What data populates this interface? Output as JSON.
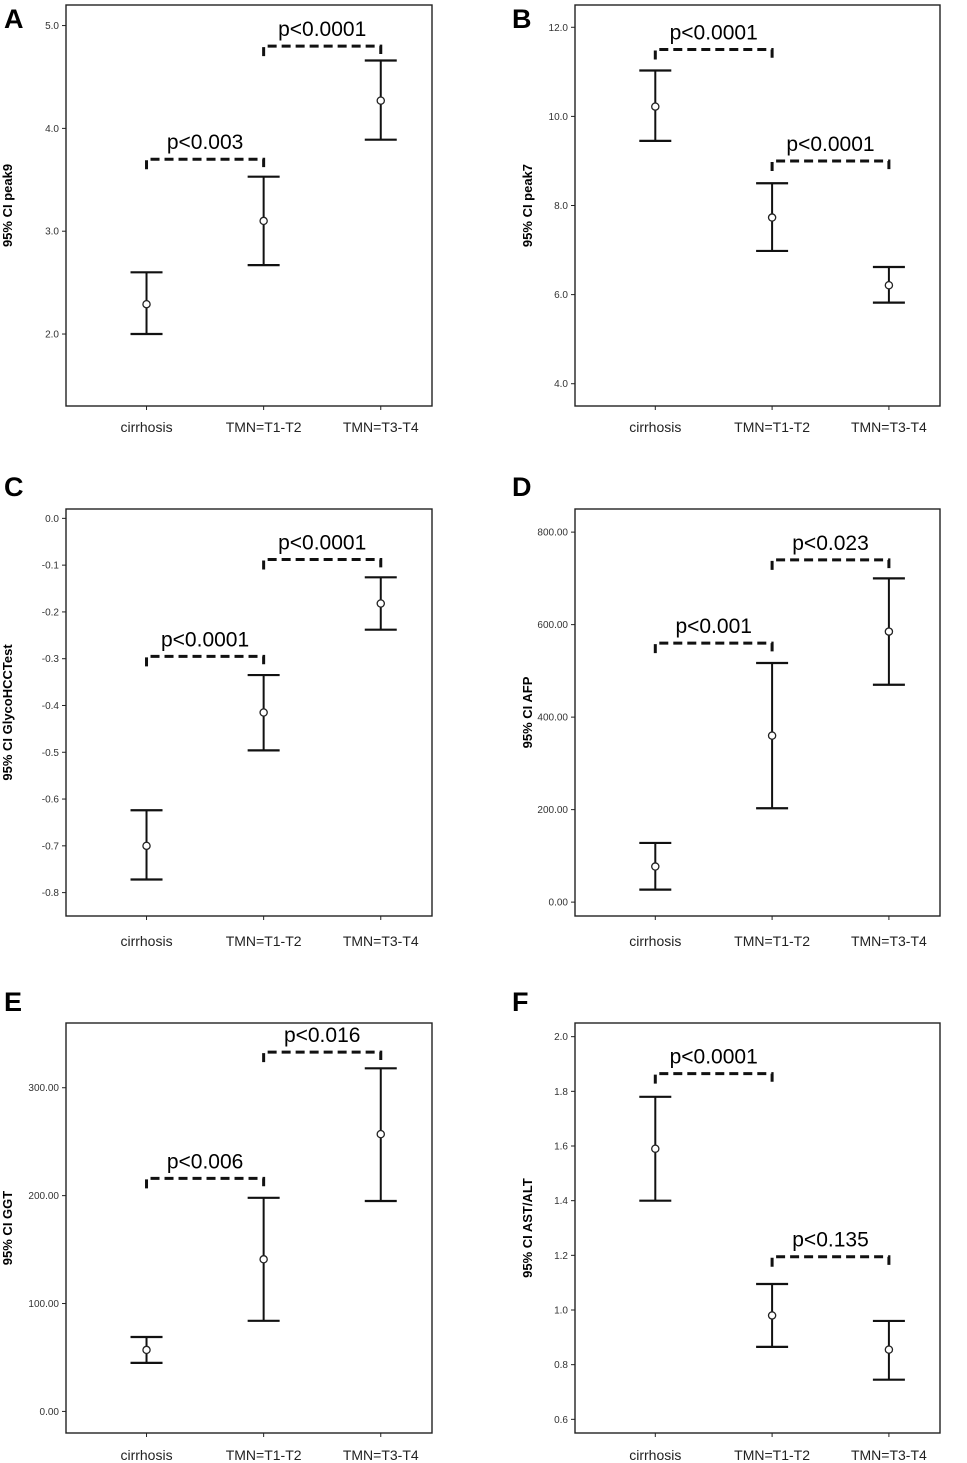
{
  "chart_data": [
    {
      "panel": "A",
      "type": "errorbar",
      "ylabel": "95% CI peak9",
      "ylim": [
        1.3,
        5.2
      ],
      "yticks": [
        "2.0",
        "3.0",
        "4.0",
        "5.0"
      ],
      "categories": [
        "cirrhosis",
        "TMN=T1-T2",
        "TMN=T3-T4"
      ],
      "series": [
        {
          "mean": [
            2.29,
            3.1,
            4.27
          ],
          "lower": [
            2.0,
            2.67,
            3.89
          ],
          "upper": [
            2.6,
            3.53,
            4.66
          ]
        }
      ],
      "annotations": [
        {
          "text": "p<0.003",
          "from": 0,
          "to": 1,
          "y": 3.7
        },
        {
          "text": "p<0.0001",
          "from": 1,
          "to": 2,
          "y": 4.8
        }
      ]
    },
    {
      "panel": "B",
      "type": "errorbar",
      "ylabel": "95% CI peak7",
      "ylim": [
        3.5,
        12.5
      ],
      "yticks": [
        "4.0",
        "6.0",
        "8.0",
        "10.0",
        "12.0"
      ],
      "categories": [
        "cirrhosis",
        "TMN=T1-T2",
        "TMN=T3-T4"
      ],
      "series": [
        {
          "mean": [
            10.22,
            7.73,
            6.21
          ],
          "lower": [
            9.45,
            6.98,
            5.82
          ],
          "upper": [
            11.03,
            8.5,
            6.62
          ]
        }
      ],
      "annotations": [
        {
          "text": "p<0.0001",
          "from": 0,
          "to": 1,
          "y": 11.5
        },
        {
          "text": "p<0.0001",
          "from": 1,
          "to": 2,
          "y": 9.0
        }
      ]
    },
    {
      "panel": "C",
      "type": "errorbar",
      "ylabel": "95% CI GlycoHCCTest",
      "ylim": [
        -0.85,
        0.02
      ],
      "yticks": [
        "0.0",
        "-0.1",
        "-0.2",
        "-0.3",
        "-0.4",
        "-0.5",
        "-0.6",
        "-0.7",
        "-0.8"
      ],
      "categories": [
        "cirrhosis",
        "TMN=T1-T2",
        "TMN=T3-T4"
      ],
      "series": [
        {
          "mean": [
            -0.7,
            -0.415,
            -0.182
          ],
          "lower": [
            -0.772,
            -0.496,
            -0.238
          ],
          "upper": [
            -0.624,
            -0.335,
            -0.126
          ]
        }
      ],
      "annotations": [
        {
          "text": "p<0.0001",
          "from": 0,
          "to": 1,
          "y": -0.295
        },
        {
          "text": "p<0.0001",
          "from": 1,
          "to": 2,
          "y": -0.088
        }
      ]
    },
    {
      "panel": "D",
      "type": "errorbar",
      "ylabel": "95% CI AFP",
      "ylim": [
        -30,
        850
      ],
      "yticks": [
        "0.00",
        "200.00",
        "400.00",
        "600.00",
        "800.00"
      ],
      "categories": [
        "cirrhosis",
        "TMN=T1-T2",
        "TMN=T3-T4"
      ],
      "series": [
        {
          "mean": [
            77,
            360,
            585
          ],
          "lower": [
            27,
            203,
            470
          ],
          "upper": [
            128,
            517,
            700
          ]
        }
      ],
      "annotations": [
        {
          "text": "p<0.001",
          "from": 0,
          "to": 1,
          "y": 560
        },
        {
          "text": "p<0.023",
          "from": 1,
          "to": 2,
          "y": 740
        }
      ]
    },
    {
      "panel": "E",
      "type": "errorbar",
      "ylabel": "95% CI GGT",
      "ylim": [
        -20,
        360
      ],
      "yticks": [
        "0.00",
        "100.00",
        "200.00",
        "300.00"
      ],
      "categories": [
        "cirrhosis",
        "TMN=T1-T2",
        "TMN=T3-T4"
      ],
      "series": [
        {
          "mean": [
            57,
            141,
            257
          ],
          "lower": [
            45,
            84,
            195
          ],
          "upper": [
            69,
            198,
            318
          ]
        }
      ],
      "annotations": [
        {
          "text": "p<0.006",
          "from": 0,
          "to": 1,
          "y": 216
        },
        {
          "text": "p<0.016",
          "from": 1,
          "to": 2,
          "y": 333
        }
      ]
    },
    {
      "panel": "F",
      "type": "errorbar",
      "ylabel": "95% CI AST/ALT",
      "ylim": [
        0.55,
        2.05
      ],
      "yticks": [
        "0.6",
        "0.8",
        "1.0",
        "1.2",
        "1.4",
        "1.6",
        "1.8",
        "2.0"
      ],
      "categories": [
        "cirrhosis",
        "TMN=T1-T2",
        "TMN=T3-T4"
      ],
      "series": [
        {
          "mean": [
            1.59,
            0.98,
            0.855
          ],
          "lower": [
            1.4,
            0.865,
            0.745
          ],
          "upper": [
            1.78,
            1.095,
            0.96
          ]
        }
      ],
      "annotations": [
        {
          "text": "p<0.0001",
          "from": 0,
          "to": 1,
          "y": 1.865
        },
        {
          "text": "p<0.135",
          "from": 1,
          "to": 2,
          "y": 1.195
        }
      ]
    }
  ]
}
